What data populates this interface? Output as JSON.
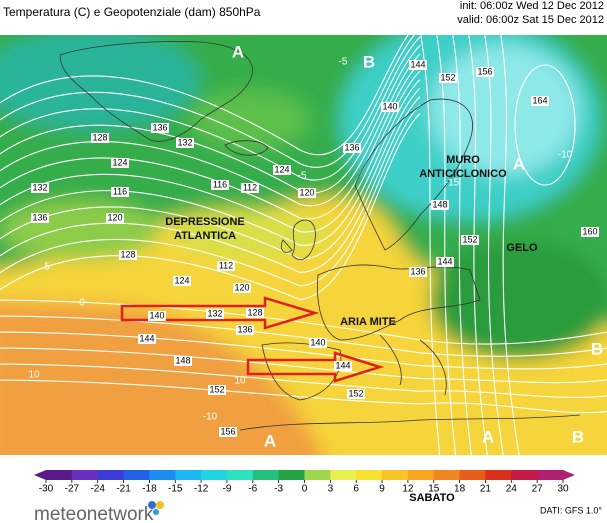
{
  "header": {
    "title": "Temperatura (C) e Geopotenziale (dam) 850hPa",
    "init": "init: 06:00z Wed 12 Dec 2012",
    "valid": "valid: 06:00z Sat 15 Dec 2012"
  },
  "annotations": [
    {
      "lines": [
        "DEPRESSIONE",
        "ATLANTICA"
      ]
    },
    {
      "lines": [
        "MURO",
        "ANTICICLONICO"
      ]
    },
    {
      "lines": [
        "GELO"
      ]
    },
    {
      "lines": [
        "ARIA MITE"
      ]
    }
  ],
  "pressure_centers": [
    "A",
    "B",
    "A",
    "B",
    "A",
    "A",
    "B"
  ],
  "contour_labels": [
    132,
    128,
    124,
    116,
    120,
    128,
    136,
    132,
    136,
    116,
    112,
    124,
    120,
    136,
    140,
    144,
    152,
    156,
    164,
    160,
    152,
    148,
    144,
    136,
    112,
    120,
    124,
    140,
    132,
    128,
    136,
    144,
    148,
    140,
    144,
    152,
    152,
    156
  ],
  "temperature_labels": [
    -5,
    5,
    0,
    10,
    10,
    -10,
    -15,
    -10,
    -5
  ],
  "colorbar": {
    "ticks": [
      -30,
      -27,
      -24,
      -21,
      -18,
      -15,
      -12,
      -9,
      -6,
      -3,
      0,
      3,
      6,
      9,
      12,
      15,
      18,
      21,
      24,
      27,
      30
    ],
    "colors": [
      "#5b1a8c",
      "#6a2fc0",
      "#3a3dd8",
      "#1f62e6",
      "#1e8df2",
      "#1cb6f2",
      "#22d4e2",
      "#2fe0bf",
      "#22c07d",
      "#22a445",
      "#9ed64a",
      "#e8f050",
      "#f8e030",
      "#f8c428",
      "#f8a620",
      "#f08620",
      "#e85c1c",
      "#d8321e",
      "#c41c48",
      "#b0206e"
    ]
  },
  "caption": "SABATO",
  "source": "DATI: GFS 1.0°",
  "brand": "meteonetwork"
}
